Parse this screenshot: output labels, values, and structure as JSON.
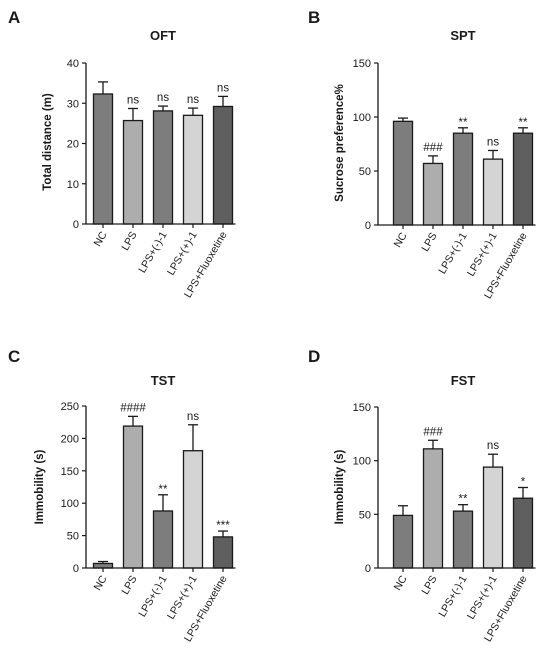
{
  "chart_data": [
    {
      "panel_letter": "A",
      "type": "bar",
      "title": "OFT",
      "ylabel": "Total distance (m)",
      "ylim": [
        0,
        40
      ],
      "yticks": [
        0,
        10,
        20,
        30,
        40
      ],
      "categories": [
        "NC",
        "LPS",
        "LPS+(-)-1",
        "LPS+(+)-1",
        "LPS+Fluoxetine"
      ],
      "values": [
        32.3,
        25.7,
        28.1,
        27.0,
        29.2
      ],
      "errors": [
        3.0,
        3.0,
        1.2,
        1.8,
        2.5
      ],
      "annotations": [
        "",
        "ns",
        "ns",
        "ns",
        "ns"
      ],
      "bar_colors": [
        "#7d7d7d",
        "#adadad",
        "#7d7d7d",
        "#d4d4d4",
        "#5f5f5f"
      ]
    },
    {
      "panel_letter": "B",
      "type": "bar",
      "title": "SPT",
      "ylabel": "Sucrose preference%",
      "ylim": [
        0,
        150
      ],
      "yticks": [
        0,
        50,
        100,
        150
      ],
      "categories": [
        "NC",
        "LPS",
        "LPS+(-)-1",
        "LPS+(+)-1",
        "LPS+Fluoxetine"
      ],
      "values": [
        96,
        57,
        85,
        61,
        85
      ],
      "errors": [
        3,
        7,
        5,
        8,
        5
      ],
      "annotations": [
        "",
        "###",
        "**",
        "ns",
        "**"
      ],
      "bar_colors": [
        "#7d7d7d",
        "#adadad",
        "#7d7d7d",
        "#d4d4d4",
        "#5f5f5f"
      ]
    },
    {
      "panel_letter": "C",
      "type": "bar",
      "title": "TST",
      "ylabel": "Immobility (s)",
      "ylim": [
        0,
        250
      ],
      "yticks": [
        0,
        50,
        100,
        150,
        200,
        250
      ],
      "categories": [
        "NC",
        "LPS",
        "LPS+(-)-1",
        "LPS+(+)-1",
        "LPS+Fluoxetine"
      ],
      "values": [
        7,
        219,
        88,
        181,
        48
      ],
      "errors": [
        3,
        15,
        25,
        40,
        9
      ],
      "annotations": [
        "",
        "####",
        "**",
        "ns",
        "***"
      ],
      "bar_colors": [
        "#7d7d7d",
        "#adadad",
        "#7d7d7d",
        "#d4d4d4",
        "#5f5f5f"
      ]
    },
    {
      "panel_letter": "D",
      "type": "bar",
      "title": "FST",
      "ylabel": "Immobility (s)",
      "ylim": [
        0,
        150
      ],
      "yticks": [
        0,
        50,
        100,
        150
      ],
      "categories": [
        "NC",
        "LPS",
        "LPS+(-)-1",
        "LPS+(+)-1",
        "LPS+Fluoxetine"
      ],
      "values": [
        49,
        111,
        53,
        94,
        65
      ],
      "errors": [
        9,
        8,
        6,
        12,
        10
      ],
      "annotations": [
        "",
        "###",
        "**",
        "ns",
        "*"
      ],
      "bar_colors": [
        "#7d7d7d",
        "#adadad",
        "#7d7d7d",
        "#d4d4d4",
        "#5f5f5f"
      ]
    }
  ]
}
